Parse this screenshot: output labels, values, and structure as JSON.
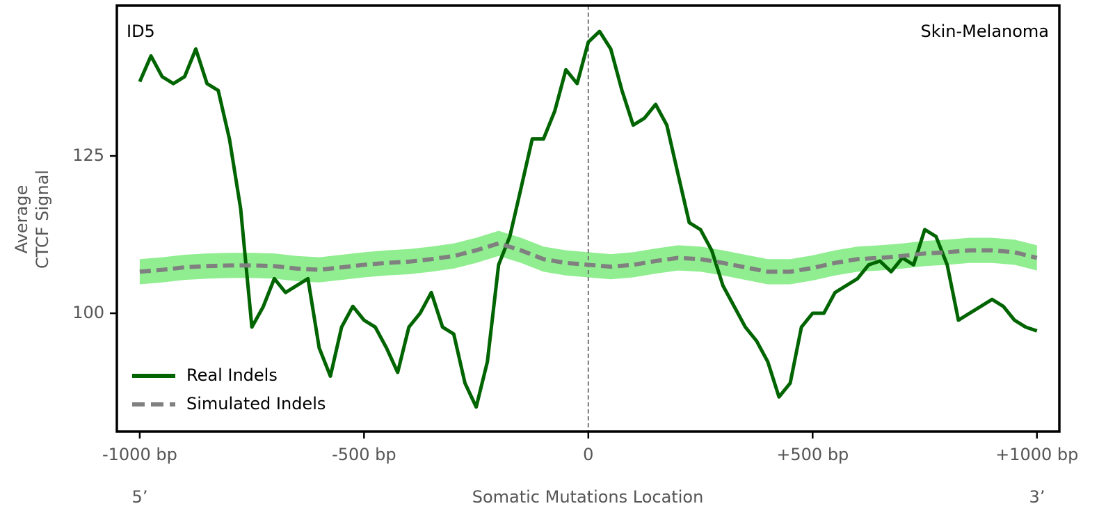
{
  "chart_data": {
    "type": "line",
    "title": "ID5",
    "subtitle": "Skin-Melanoma",
    "ylabel_lines": [
      "Average",
      "CTCF Signal"
    ],
    "xlabel": "Somatic Mutations Location",
    "left_end_label": "5’",
    "right_end_label": "3’",
    "xlim": [
      -1051,
      1050
    ],
    "ylim": [
      81.2,
      148.9
    ],
    "xticks": [
      {
        "value": -1000,
        "label": "-1000 bp"
      },
      {
        "value": -500,
        "label": "-500 bp"
      },
      0,
      {
        "value": 500,
        "label": "+500 bp"
      },
      {
        "value": 1000,
        "label": "+1000 bp"
      }
    ],
    "yticks": [
      100,
      125
    ],
    "vline": 0,
    "legend": "lower left",
    "series": [
      {
        "name": "Real Indels",
        "color": "#006400",
        "style": "solid",
        "x": [
          -1000,
          -975,
          -950,
          -925,
          -900,
          -875,
          -850,
          -825,
          -800,
          -775,
          -750,
          -725,
          -700,
          -675,
          -650,
          -625,
          -600,
          -575,
          -550,
          -525,
          -500,
          -475,
          -450,
          -425,
          -400,
          -375,
          -350,
          -325,
          -300,
          -275,
          -250,
          -225,
          -200,
          -175,
          -150,
          -125,
          -100,
          -75,
          -50,
          -25,
          0,
          25,
          50,
          75,
          100,
          125,
          150,
          175,
          200,
          225,
          250,
          275,
          300,
          325,
          350,
          375,
          400,
          425,
          450,
          475,
          500,
          525,
          550,
          575,
          600,
          625,
          650,
          675,
          700,
          725,
          750,
          775,
          800,
          825,
          850,
          875,
          900,
          925,
          950,
          975,
          1000
        ],
        "values": [
          136.8,
          140.9,
          137.6,
          136.5,
          137.6,
          142,
          136.5,
          135.4,
          127.7,
          116.6,
          97.8,
          101,
          105.5,
          103.3,
          104.4,
          105.5,
          94.5,
          90,
          97.8,
          101.1,
          98.9,
          97.8,
          94.5,
          90.6,
          97.8,
          100,
          103.3,
          97.8,
          96.7,
          88.9,
          85.1,
          92.3,
          107.7,
          112.2,
          119.9,
          127.7,
          127.7,
          132.1,
          138.7,
          136.5,
          143.1,
          144.8,
          142,
          135.4,
          129.9,
          131,
          133.2,
          129.9,
          122.1,
          114.4,
          113.3,
          110,
          104.4,
          101.1,
          97.8,
          95.6,
          92.3,
          86.7,
          88.9,
          97.8,
          100,
          100,
          103.3,
          104.4,
          105.5,
          107.7,
          108.3,
          106.6,
          108.8,
          107.7,
          113.3,
          112.2,
          107.7,
          98.9,
          100,
          101.1,
          102.2,
          101.1,
          98.9,
          97.8,
          97.2
        ]
      },
      {
        "name": "Simulated Indels",
        "color": "#808080",
        "band_color": "#90ee90",
        "style": "dashed",
        "x": [
          -1000,
          -950,
          -900,
          -850,
          -800,
          -750,
          -700,
          -650,
          -600,
          -550,
          -500,
          -450,
          -400,
          -350,
          -300,
          -250,
          -200,
          -150,
          -100,
          -50,
          0,
          50,
          100,
          150,
          200,
          250,
          300,
          350,
          400,
          450,
          500,
          550,
          600,
          650,
          700,
          750,
          800,
          850,
          900,
          950,
          1000
        ],
        "values": [
          106.6,
          106.9,
          107.3,
          107.5,
          107.6,
          107.6,
          107.5,
          107.1,
          106.9,
          107.3,
          107.7,
          108,
          108.2,
          108.6,
          109.1,
          110,
          111.1,
          110,
          108.6,
          108,
          107.7,
          107.4,
          107.7,
          108.3,
          108.8,
          108.6,
          108,
          107.3,
          106.6,
          106.6,
          107.2,
          108,
          108.6,
          108.8,
          109.1,
          109.5,
          109.7,
          110,
          110,
          109.7,
          108.8
        ],
        "errors": [
          2,
          2,
          2,
          2,
          2,
          2,
          2,
          2,
          2,
          2,
          2,
          2,
          2,
          2,
          2,
          2,
          2,
          2,
          2,
          2,
          2,
          2,
          2,
          2,
          2,
          2,
          2,
          2,
          2,
          2,
          2,
          2,
          2,
          2,
          2,
          2,
          2,
          2,
          2,
          2,
          2
        ]
      }
    ]
  }
}
